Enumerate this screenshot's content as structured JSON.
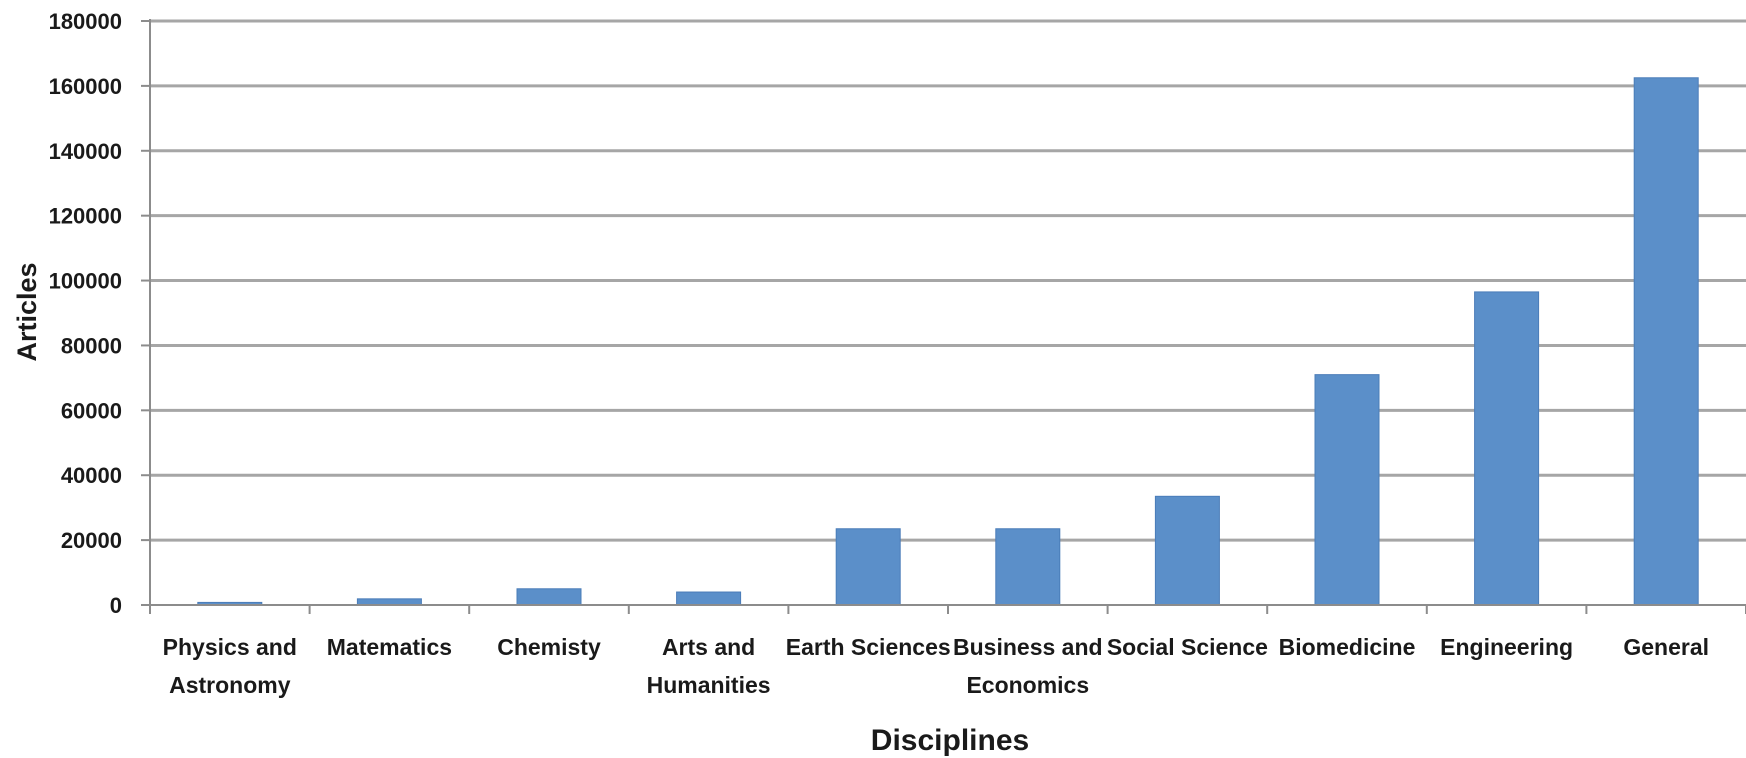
{
  "chart_data": {
    "type": "bar",
    "title": "",
    "xlabel": "Disciplines",
    "ylabel": "Articles",
    "categories": [
      "Physics and Astronomy",
      "Matematics",
      "Chemisty",
      "Arts and Humanities",
      "Earth Sciences",
      "Business and Economics",
      "Social Science",
      "Biomedicine",
      "Engineering",
      "General"
    ],
    "category_lines": [
      [
        "Physics and",
        "Astronomy"
      ],
      [
        "Matematics"
      ],
      [
        "Chemisty"
      ],
      [
        "Arts and",
        "Humanities"
      ],
      [
        "Earth Sciences"
      ],
      [
        "Business and",
        "Economics"
      ],
      [
        "Social Science"
      ],
      [
        "Biomedicine"
      ],
      [
        "Engineering"
      ],
      [
        "General"
      ]
    ],
    "values": [
      800,
      1900,
      5000,
      4000,
      23500,
      23500,
      33500,
      71000,
      96500,
      162500
    ],
    "ylim": [
      0,
      180000
    ],
    "yticks": [
      0,
      20000,
      40000,
      60000,
      80000,
      100000,
      120000,
      140000,
      160000,
      180000
    ],
    "grid": true,
    "legend": "none",
    "colors": {
      "bar": "#5b8fc9",
      "bar_edge": "#4a7cb8",
      "grid": "#a6a6a6",
      "axis": "#8c8c8c",
      "text": "#1a1a1a"
    }
  }
}
